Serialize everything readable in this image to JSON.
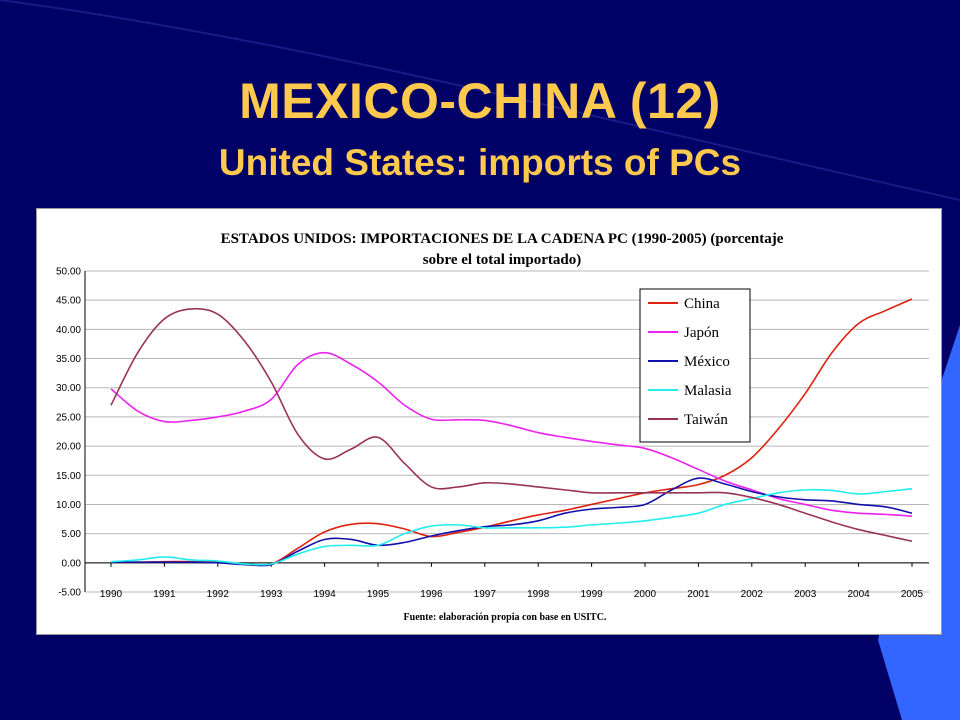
{
  "slide": {
    "title": "MEXICO-CHINA (12)",
    "subtitle": "United States: imports of PCs"
  },
  "colors": {
    "background": "#000066",
    "title": "#FFC94D",
    "accent_blue": "#3366FF"
  },
  "chart_data": {
    "type": "line",
    "title_line1": "ESTADOS UNIDOS: IMPORTACIONES DE LA CADENA PC (1990-2005) (porcentaje",
    "title_line2": "sobre el total importado)",
    "source": "Fuente: elaboración propia con base en USITC.",
    "x": [
      1990,
      1990.5,
      1991,
      1991.5,
      1992,
      1992.5,
      1993,
      1993.5,
      1994,
      1994.5,
      1995,
      1995.5,
      1996,
      1996.5,
      1997,
      1997.5,
      1998,
      1998.5,
      1999,
      1999.5,
      2000,
      2000.5,
      2001,
      2001.5,
      2002,
      2002.5,
      2003,
      2003.5,
      2004,
      2004.5,
      2005
    ],
    "x_ticks": [
      "1990",
      "1991",
      "1992",
      "1993",
      "1994",
      "1995",
      "1996",
      "1997",
      "1998",
      "1999",
      "2000",
      "2001",
      "2002",
      "2003",
      "2004",
      "2005"
    ],
    "y_ticks": [
      "50.00",
      "45.00",
      "40.00",
      "35.00",
      "30.00",
      "25.00",
      "20.00",
      "15.00",
      "10.00",
      "5.00",
      "0.00",
      "-5.00"
    ],
    "ylim": [
      -5,
      50
    ],
    "grid": true,
    "legend_position": "top-right",
    "series": [
      {
        "name": "China",
        "color": "#DD2211",
        "values": [
          0.1,
          0.1,
          0.2,
          0.2,
          0.1,
          -0.2,
          -0.2,
          2.5,
          5.3,
          6.6,
          6.7,
          5.8,
          4.5,
          5.2,
          6.1,
          7.2,
          8.2,
          9.0,
          10.0,
          11.0,
          12.0,
          12.7,
          13.4,
          15.0,
          18.0,
          23.0,
          29.0,
          36.0,
          41.0,
          43.2,
          45.2
        ]
      },
      {
        "name": "Japón",
        "color": "#EE22EE",
        "values": [
          29.8,
          26.0,
          24.2,
          24.4,
          25.0,
          26.0,
          28.0,
          34.0,
          36.0,
          34.0,
          31.0,
          27.0,
          24.6,
          24.5,
          24.4,
          23.5,
          22.3,
          21.5,
          20.8,
          20.2,
          19.6,
          18.0,
          16.0,
          14.0,
          12.5,
          11.0,
          10.0,
          9.0,
          8.5,
          8.3,
          8.0
        ]
      },
      {
        "name": "México",
        "color": "#1111AA",
        "values": [
          0.1,
          0.1,
          0.1,
          0.1,
          0.0,
          -0.3,
          -0.3,
          2.0,
          4.0,
          4.0,
          3.0,
          3.5,
          4.6,
          5.5,
          6.2,
          6.5,
          7.2,
          8.5,
          9.2,
          9.5,
          10.0,
          12.5,
          14.5,
          13.5,
          12.2,
          11.3,
          10.8,
          10.6,
          10.0,
          9.6,
          8.5
        ]
      },
      {
        "name": "Malasia",
        "color": "#22EEEE",
        "values": [
          0.2,
          0.5,
          1.0,
          0.5,
          0.3,
          -0.2,
          -0.2,
          1.5,
          2.8,
          3.0,
          3.0,
          5.0,
          6.3,
          6.5,
          6.0,
          6.0,
          6.0,
          6.1,
          6.5,
          6.8,
          7.2,
          7.8,
          8.5,
          10.0,
          11.0,
          12.0,
          12.5,
          12.4,
          11.8,
          12.2,
          12.7
        ]
      },
      {
        "name": "Taiwán",
        "color": "#993355",
        "values": [
          27.0,
          36.0,
          41.8,
          43.5,
          42.6,
          38.0,
          31.0,
          22.0,
          17.8,
          19.5,
          21.5,
          17.0,
          13.0,
          13.0,
          13.7,
          13.5,
          13.0,
          12.5,
          12.0,
          12.0,
          12.0,
          12.0,
          12.0,
          12.0,
          11.2,
          10.0,
          8.5,
          7.0,
          5.7,
          4.7,
          3.7
        ]
      }
    ]
  }
}
